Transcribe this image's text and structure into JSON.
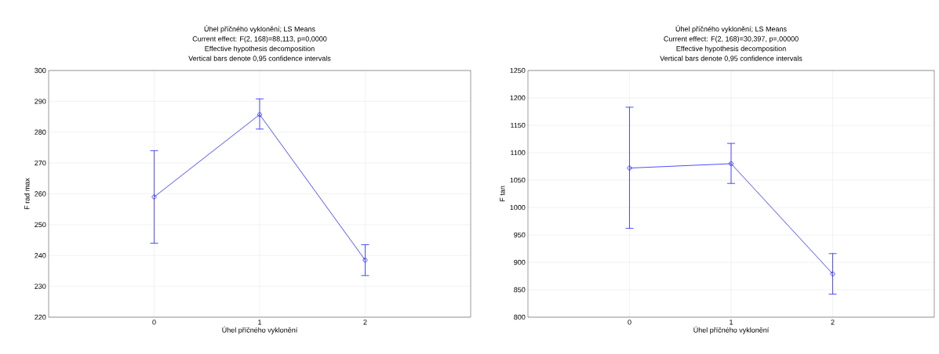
{
  "chart_data": [
    {
      "type": "line",
      "title": "Úhel příčného vyklonění; LS Means",
      "subtitle": "Current effect: F(2, 168)=88,113, p=0,0000",
      "annotations": [
        "Effective hypothesis decomposition",
        "Vertical bars denote 0,95 confidence intervals"
      ],
      "xlabel": "Úhel příčného vyklonění",
      "ylabel": "F rad max",
      "categories": [
        "0",
        "1",
        "2"
      ],
      "series": [
        {
          "color": "#1f1fff",
          "values": [
            259,
            285.7,
            238.5
          ],
          "errors": [
            [
              244,
              274
            ],
            [
              281,
              290.8
            ],
            [
              233.5,
              243.5
            ]
          ]
        }
      ],
      "ylim": [
        220,
        300
      ],
      "yticks": [
        220,
        230,
        240,
        250,
        260,
        270,
        280,
        290,
        300
      ],
      "grid": true,
      "marker": "circle",
      "line_style": "solid"
    },
    {
      "type": "line",
      "title": "Úhel příčného vyklonění; LS Means",
      "subtitle": "Current effect: F(2, 168)=30,397, p=,00000",
      "annotations": [
        "Effective hypothesis decomposition",
        "Vertical bars denote 0,95 confidence intervals"
      ],
      "xlabel": "Úhel příčného vyklonění",
      "ylabel": "F tan",
      "categories": [
        "0",
        "1",
        "2"
      ],
      "series": [
        {
          "color": "#1f1fff",
          "values": [
            1072,
            1080,
            879
          ],
          "errors": [
            [
              962,
              1183
            ],
            [
              1044,
              1117
            ],
            [
              842,
              916
            ]
          ]
        }
      ],
      "ylim": [
        800,
        1250
      ],
      "yticks": [
        800,
        850,
        900,
        950,
        1000,
        1050,
        1100,
        1150,
        1200,
        1250
      ],
      "grid": true,
      "marker": "circle",
      "line_style": "solid"
    }
  ]
}
